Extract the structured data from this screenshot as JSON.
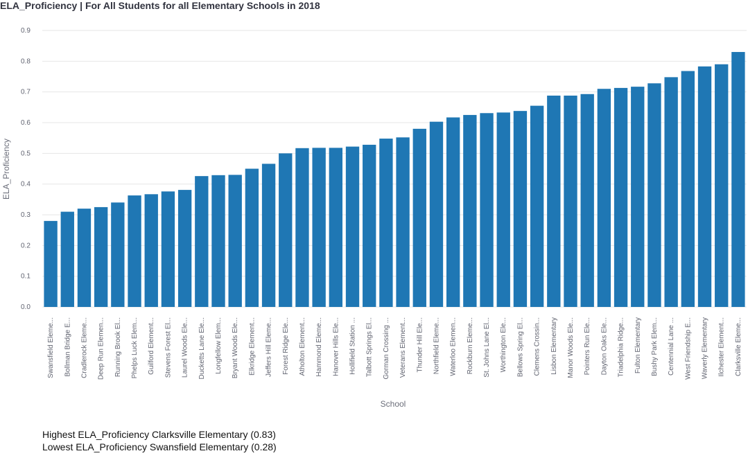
{
  "title": "ELA_Proficiency | For All Students for all Elementary Schools in 2018",
  "summary": {
    "highest": "Highest ELA_Proficiency Clarksville Elementary (0.83)",
    "lowest": "Lowest ELA_Proficiency Swansfield Elementary (0.28)"
  },
  "colors": {
    "bar": "#1f77b4",
    "grid": "#e6e6e6"
  },
  "chart_data": {
    "type": "bar",
    "xlabel": "School",
    "ylabel": "ELA_Proficiency",
    "ylim": [
      0,
      0.9
    ],
    "yticks": [
      "0.0",
      "0.1",
      "0.2",
      "0.3",
      "0.4",
      "0.5",
      "0.6",
      "0.7",
      "0.8",
      "0.9"
    ],
    "grid": true,
    "categories": [
      "Swansfield Eleme...",
      "Bollman Bridge E...",
      "Cradlerock Eleme...",
      "Deep Run Elemen...",
      "Running Brook El...",
      "Phelps Luck Elem...",
      "Guilford Element...",
      "Stevens Forest El...",
      "Laurel Woods Ele...",
      "Ducketts Lane Ele...",
      "Longfellow Elem...",
      "Bryant Woods Ele...",
      "Elkridge Element...",
      "Jeffers Hill Eleme...",
      "Forest Ridge Ele...",
      "Atholton Element...",
      "Hammond Eleme...",
      "Hanover Hills Ele...",
      "Hollifield Station ...",
      "Talbott Springs El...",
      "Gorman Crossing ...",
      "Veterans Element...",
      "Thunder Hill Ele...",
      "Northfield Eleme...",
      "Waterloo Elemen...",
      "Rockburn Eleme...",
      "St. Johns Lane El...",
      "Worthington Ele...",
      "Bellows Spring El...",
      "Clemens Crossin...",
      "Lisbon Elementary",
      "Manor Woods Ele...",
      "Pointers Run Ele...",
      "Dayton Oaks Ele...",
      "Triadelphia Ridge...",
      "Fulton Elementary",
      "Bushy Park Elem...",
      "Centennial Lane ...",
      "West Friendship E...",
      "Waverly Elementary",
      "Ilchester Element...",
      "Clarksville Eleme..."
    ],
    "values": [
      0.28,
      0.31,
      0.32,
      0.325,
      0.34,
      0.363,
      0.367,
      0.376,
      0.381,
      0.426,
      0.429,
      0.43,
      0.45,
      0.466,
      0.5,
      0.517,
      0.518,
      0.518,
      0.522,
      0.528,
      0.548,
      0.552,
      0.58,
      0.603,
      0.617,
      0.625,
      0.631,
      0.633,
      0.638,
      0.655,
      0.688,
      0.688,
      0.693,
      0.71,
      0.713,
      0.717,
      0.728,
      0.748,
      0.768,
      0.783,
      0.79,
      0.83
    ]
  }
}
